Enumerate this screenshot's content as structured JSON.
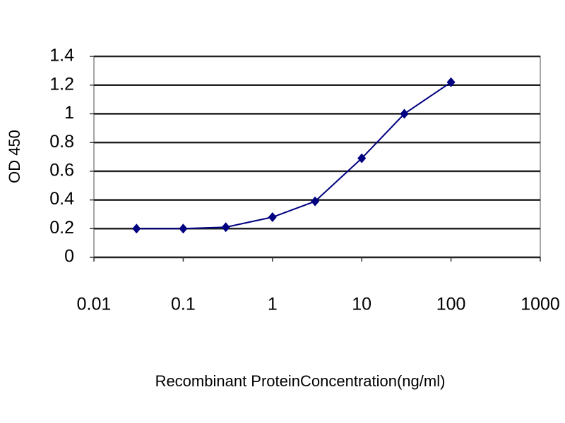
{
  "chart_data": {
    "type": "line",
    "x_label": "Recombinant ProteinConcentration(ng/ml)",
    "y_label": "OD 450",
    "x": [
      0.03,
      0.1,
      0.3,
      1,
      3,
      10,
      30,
      100
    ],
    "series": [
      {
        "color": "#000080",
        "values": [
          0.2,
          0.2,
          0.21,
          0.28,
          0.39,
          0.69,
          1.0,
          1.22
        ]
      }
    ],
    "xscale": "log",
    "xlim": [
      0.01,
      1000
    ],
    "xticks": [
      0.01,
      0.1,
      1,
      10,
      100,
      1000
    ],
    "ylim": [
      0,
      1.4
    ],
    "yticks": [
      0,
      0.2,
      0.4,
      0.6,
      0.8,
      1,
      1.2,
      1.4
    ],
    "grid": true
  }
}
